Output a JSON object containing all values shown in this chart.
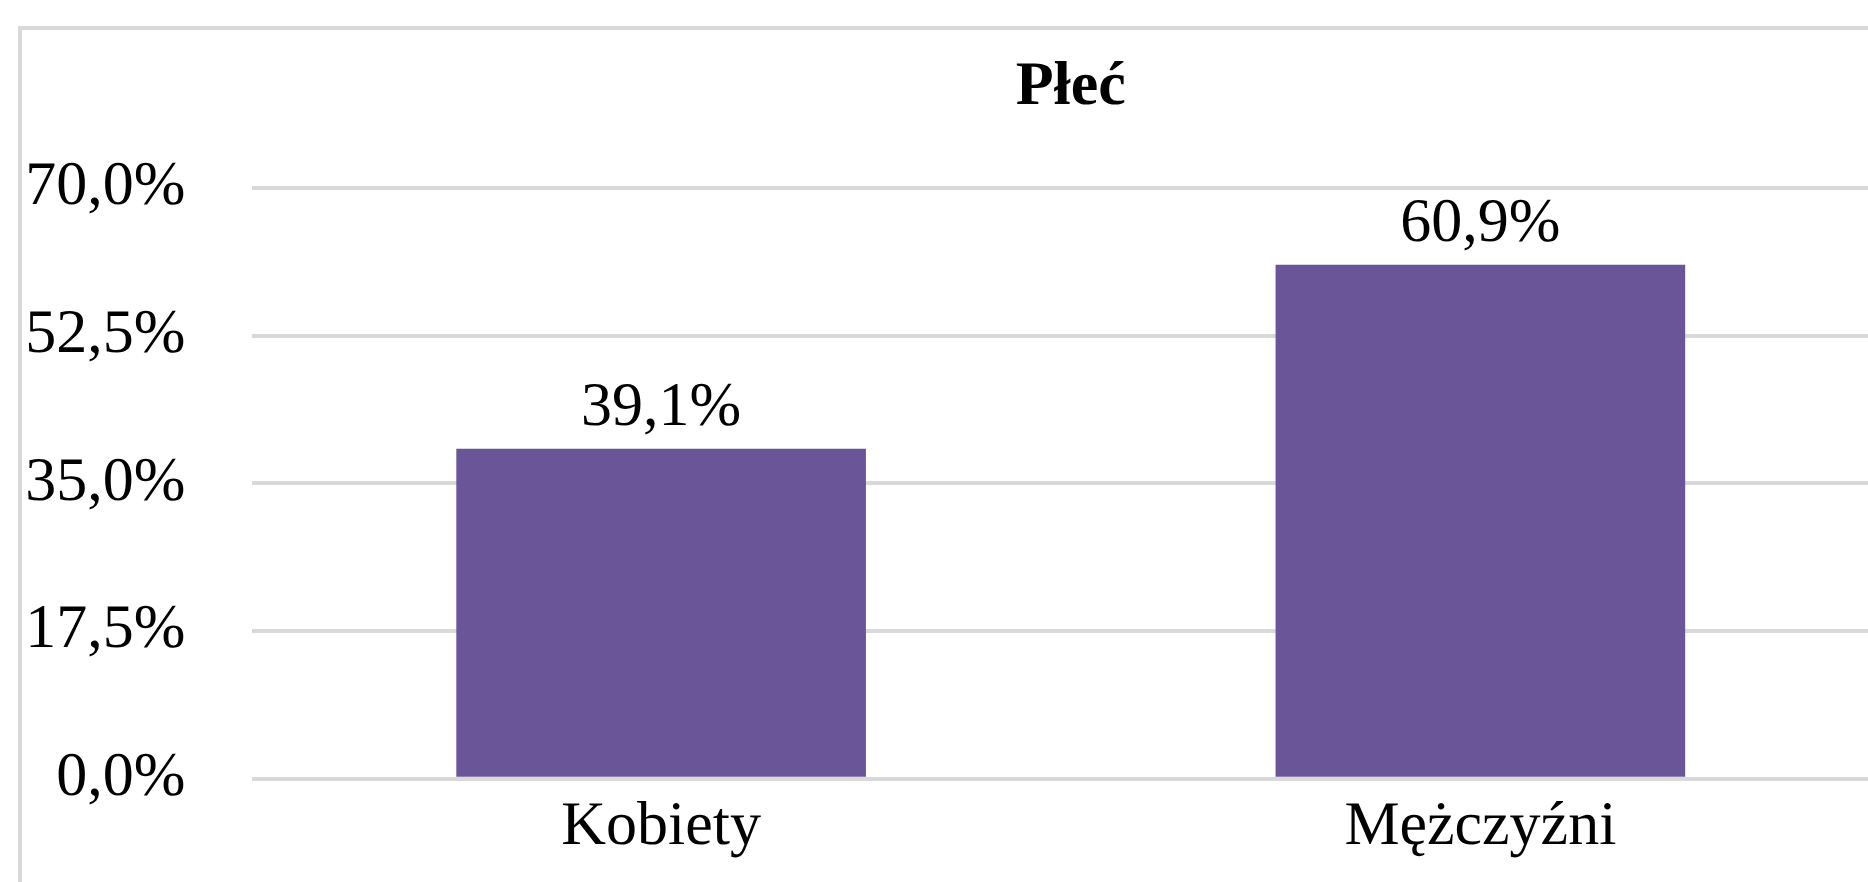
{
  "chart_data": {
    "type": "bar",
    "title": "Płeć",
    "categories": [
      "Kobiety",
      "Mężczyźni"
    ],
    "values": [
      39.1,
      60.9
    ],
    "color": "#6a5599",
    "value_labels": [
      "39,1%",
      "60,9%"
    ],
    "ylim": [
      0,
      70
    ],
    "yticks": [
      {
        "value": 0,
        "label": "0,0%"
      },
      {
        "value": 17.5,
        "label": "17,5%"
      },
      {
        "value": 35,
        "label": "35,0%"
      },
      {
        "value": 52.5,
        "label": "52,5%"
      },
      {
        "value": 70,
        "label": "70,0%"
      }
    ],
    "grid": "y",
    "legend": false
  }
}
